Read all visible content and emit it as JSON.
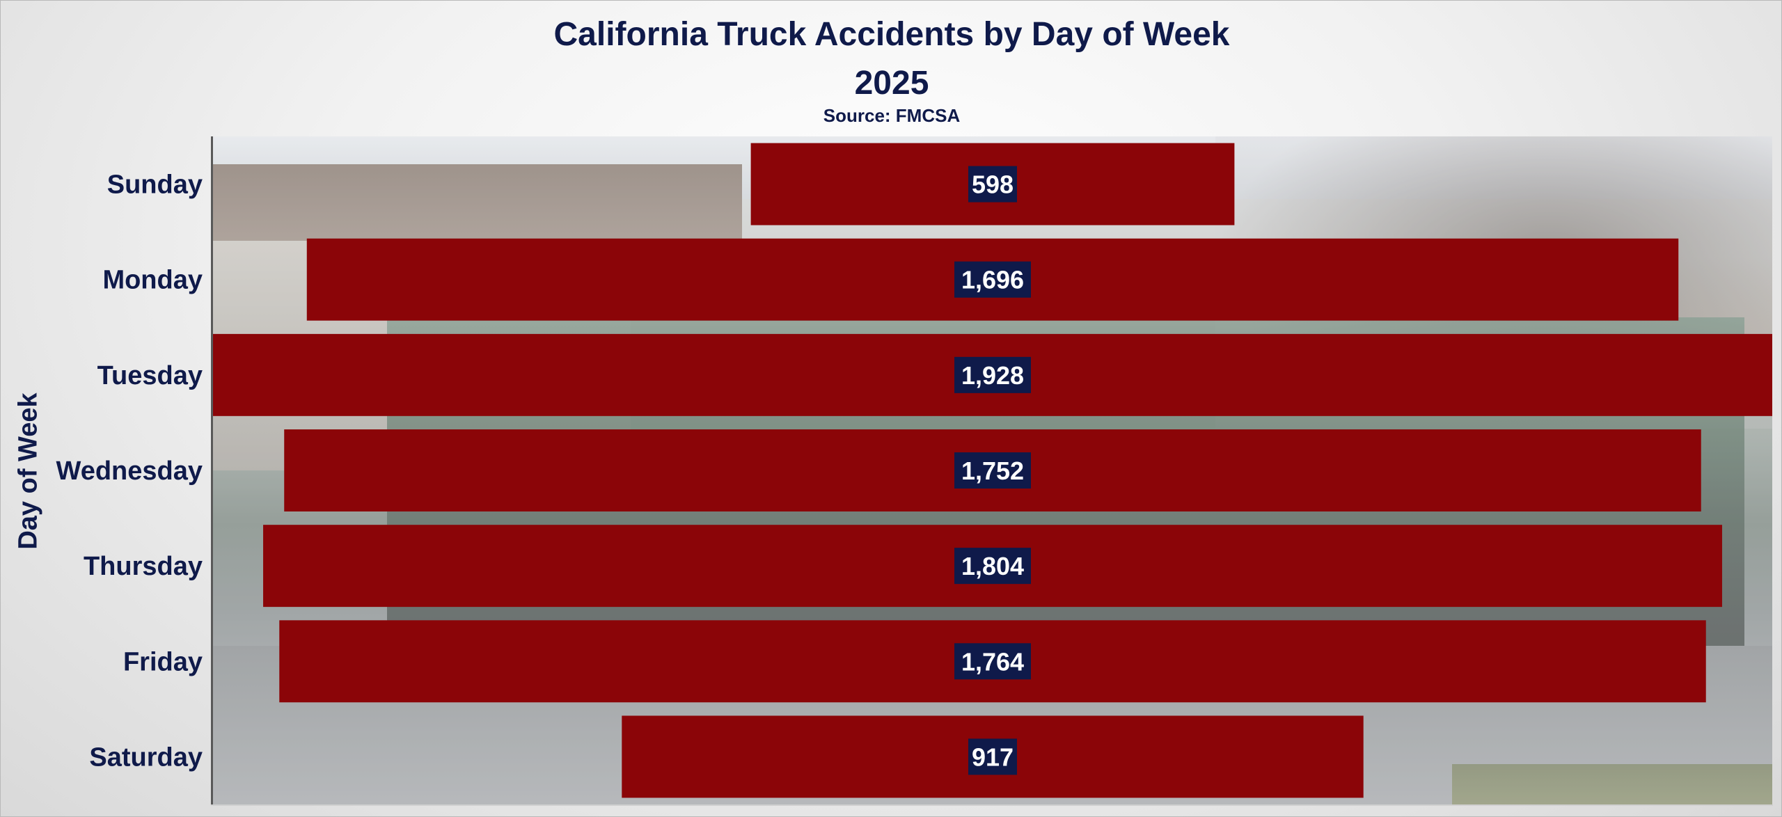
{
  "chart_data": {
    "type": "bar",
    "orientation": "horizontal",
    "title": "California Truck Accidents by Day of Week",
    "subtitle": "2025",
    "source": "Source: FMCSA",
    "ylabel": "Day of Week",
    "xlabel": "",
    "categories": [
      "Sunday",
      "Monday",
      "Tuesday",
      "Wednesday",
      "Thursday",
      "Friday",
      "Saturday"
    ],
    "values": [
      598,
      1696,
      1928,
      1752,
      1804,
      1764,
      917
    ],
    "value_labels": [
      "598",
      "1,696",
      "1,928",
      "1,752",
      "1,804",
      "1,764",
      "917"
    ],
    "xlim": [
      0,
      1928
    ],
    "bar_alignment": "centered",
    "grid": false,
    "legend": "none",
    "colors": {
      "bar": "#8b0508",
      "label_box": "#0f1a4a",
      "label_text": "#ffffff",
      "text": "#0f1a4a"
    }
  }
}
